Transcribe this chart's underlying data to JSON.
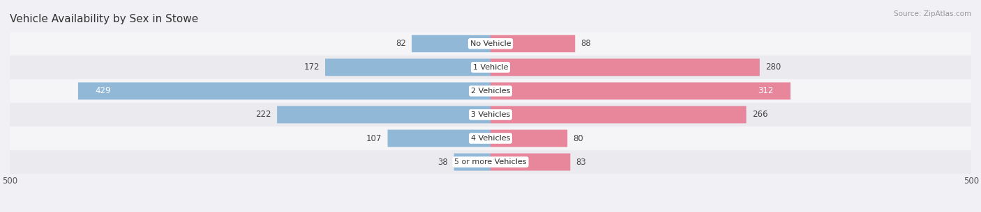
{
  "title": "Vehicle Availability by Sex in Stowe",
  "source": "Source: ZipAtlas.com",
  "categories": [
    "No Vehicle",
    "1 Vehicle",
    "2 Vehicles",
    "3 Vehicles",
    "4 Vehicles",
    "5 or more Vehicles"
  ],
  "male_values": [
    82,
    172,
    429,
    222,
    107,
    38
  ],
  "female_values": [
    88,
    280,
    312,
    266,
    80,
    83
  ],
  "male_color": "#92b8d8",
  "female_color": "#e8879c",
  "bar_height": 0.72,
  "xlim": [
    -500,
    500
  ],
  "row_colors": [
    "#f5f5f8",
    "#eaeaef"
  ],
  "background_color": "#f0f0f5",
  "title_fontsize": 11,
  "value_fontsize": 8.5,
  "cat_fontsize": 8.0,
  "figsize": [
    14.06,
    3.05
  ],
  "dpi": 100
}
